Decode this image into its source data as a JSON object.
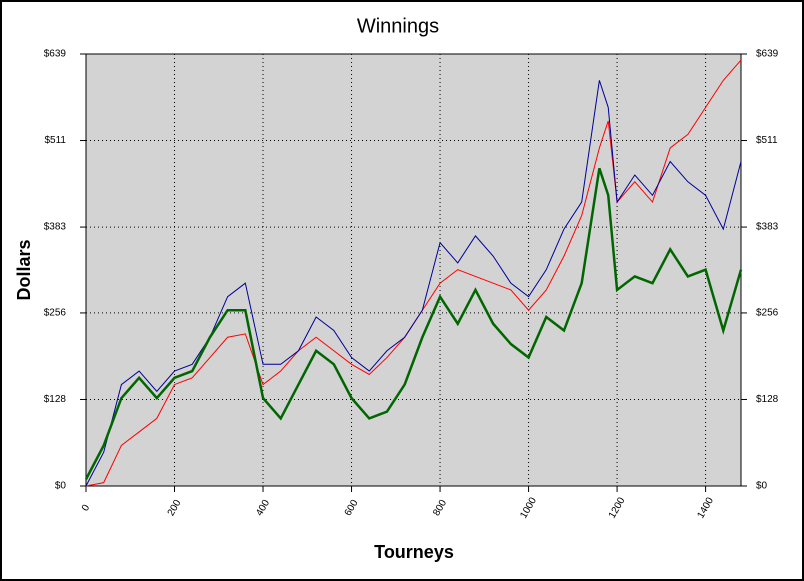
{
  "chart_data": {
    "type": "line",
    "title": "Winnings",
    "xlabel": "Tourneys",
    "ylabel": "Dollars",
    "x": [
      0,
      40,
      80,
      120,
      160,
      200,
      240,
      280,
      320,
      360,
      400,
      440,
      480,
      520,
      560,
      600,
      640,
      680,
      720,
      760,
      800,
      840,
      880,
      920,
      960,
      1000,
      1040,
      1080,
      1120,
      1160,
      1180,
      1200,
      1240,
      1280,
      1320,
      1360,
      1400,
      1440,
      1480
    ],
    "series": [
      {
        "color": "#ff0000",
        "values": [
          0,
          5,
          60,
          80,
          100,
          150,
          160,
          190,
          220,
          225,
          150,
          170,
          200,
          220,
          200,
          180,
          165,
          190,
          220,
          260,
          300,
          320,
          310,
          300,
          290,
          260,
          290,
          340,
          400,
          500,
          540,
          420,
          450,
          420,
          500,
          520,
          560,
          600,
          630
        ]
      },
      {
        "color": "#000099",
        "values": [
          0,
          50,
          150,
          170,
          140,
          170,
          180,
          220,
          280,
          300,
          180,
          180,
          200,
          250,
          230,
          190,
          170,
          200,
          220,
          260,
          360,
          330,
          370,
          340,
          300,
          280,
          320,
          380,
          420,
          600,
          560,
          420,
          460,
          430,
          480,
          450,
          430,
          380,
          480
        ]
      },
      {
        "color": "#006600",
        "values": [
          10,
          60,
          130,
          160,
          130,
          160,
          170,
          220,
          260,
          260,
          130,
          100,
          150,
          200,
          180,
          130,
          100,
          110,
          150,
          220,
          280,
          240,
          290,
          240,
          210,
          190,
          250,
          230,
          300,
          470,
          430,
          290,
          310,
          300,
          350,
          310,
          320,
          230,
          320
        ]
      }
    ],
    "xlim": [
      0,
      1480
    ],
    "xticks": [
      0,
      200,
      400,
      600,
      800,
      1000,
      1200,
      1400
    ],
    "ylim": [
      0,
      639
    ],
    "yticks": [
      {
        "value": 0,
        "label": "$0"
      },
      {
        "value": 128,
        "label": "$128"
      },
      {
        "value": 256,
        "label": "$256"
      },
      {
        "value": 383,
        "label": "$383"
      },
      {
        "value": 511,
        "label": "$511"
      },
      {
        "value": 639,
        "label": "$639"
      }
    ],
    "grid": true
  }
}
